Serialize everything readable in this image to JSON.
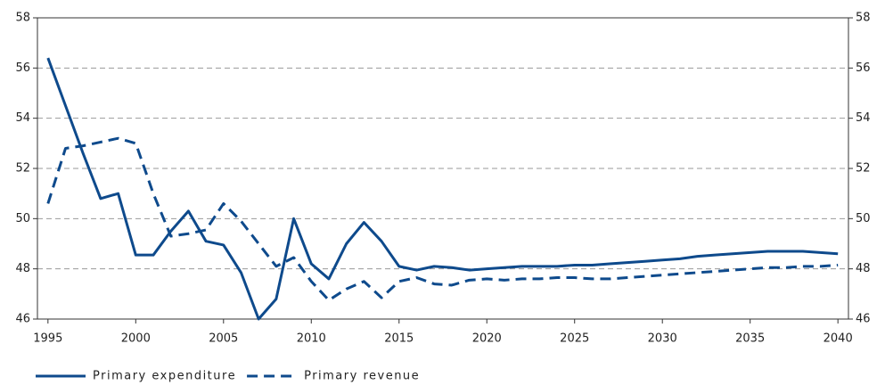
{
  "chart_data": {
    "type": "line",
    "x": [
      1995,
      1996,
      1997,
      1998,
      1999,
      2000,
      2001,
      2002,
      2003,
      2004,
      2005,
      2006,
      2007,
      2008,
      2009,
      2010,
      2011,
      2012,
      2013,
      2014,
      2015,
      2016,
      2017,
      2018,
      2019,
      2020,
      2021,
      2022,
      2023,
      2024,
      2025,
      2026,
      2027,
      2028,
      2029,
      2030,
      2031,
      2032,
      2033,
      2034,
      2035,
      2036,
      2037,
      2038,
      2039,
      2040
    ],
    "series": [
      {
        "name": "Primary expenditure",
        "color": "#0e4a8c",
        "style": "solid",
        "values": [
          56.4,
          54.5,
          52.6,
          50.8,
          51.0,
          48.55,
          48.55,
          49.5,
          50.3,
          49.1,
          48.95,
          47.85,
          46.0,
          46.8,
          50.0,
          48.2,
          47.6,
          49.0,
          49.85,
          49.1,
          48.1,
          47.95,
          48.1,
          48.05,
          47.95,
          48.0,
          48.05,
          48.1,
          48.1,
          48.1,
          48.15,
          48.15,
          48.2,
          48.25,
          48.3,
          48.35,
          48.4,
          48.5,
          48.55,
          48.6,
          48.65,
          48.7,
          48.7,
          48.7,
          48.65,
          48.6
        ]
      },
      {
        "name": "Primary revenue",
        "color": "#0e4a8c",
        "style": "dashed",
        "values": [
          50.6,
          52.8,
          52.9,
          53.05,
          53.2,
          53.0,
          51.0,
          49.3,
          49.4,
          49.55,
          50.6,
          49.9,
          49.0,
          48.1,
          48.45,
          47.5,
          46.75,
          47.2,
          47.5,
          46.85,
          47.5,
          47.65,
          47.4,
          47.35,
          47.55,
          47.6,
          47.55,
          47.6,
          47.6,
          47.65,
          47.65,
          47.6,
          47.6,
          47.65,
          47.7,
          47.75,
          47.8,
          47.85,
          47.9,
          47.95,
          48.0,
          48.05,
          48.05,
          48.1,
          48.1,
          48.15
        ]
      }
    ],
    "xlim": [
      1994.4,
      2040.6
    ],
    "xticks": [
      1995,
      2000,
      2005,
      2010,
      2015,
      2020,
      2025,
      2030,
      2035,
      2040
    ],
    "ylim": [
      46,
      58
    ],
    "yticks": [
      46,
      48,
      50,
      52,
      54,
      56,
      58
    ],
    "grid": true,
    "legend": "bottom-left"
  }
}
